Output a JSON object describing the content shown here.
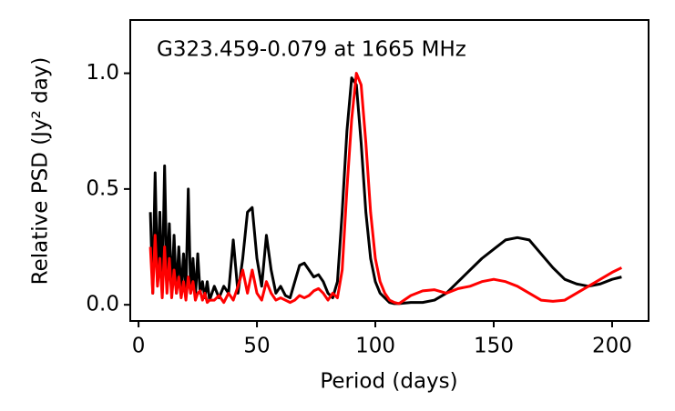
{
  "chart_data": {
    "type": "line",
    "annotation": "G323.459-0.079 at 1665 MHz",
    "x_label": "Period (days)",
    "y_label": "Relative PSD (Jy² day)",
    "x": [
      5,
      6,
      7,
      8,
      9,
      10,
      11,
      12,
      13,
      14,
      15,
      16,
      17,
      18,
      19,
      20,
      21,
      22,
      23,
      24,
      25,
      26,
      27,
      28,
      29,
      30,
      32,
      34,
      36,
      38,
      40,
      42,
      44,
      46,
      48,
      50,
      52,
      54,
      56,
      58,
      60,
      62,
      64,
      66,
      68,
      70,
      72,
      74,
      76,
      78,
      80,
      82,
      84,
      86,
      88,
      90,
      92,
      94,
      96,
      98,
      100,
      102,
      104,
      106,
      108,
      110,
      115,
      120,
      125,
      130,
      135,
      140,
      145,
      150,
      155,
      160,
      165,
      170,
      175,
      180,
      185,
      190,
      195,
      200,
      204
    ],
    "series": [
      {
        "color": "#000000",
        "values": [
          0.4,
          0.05,
          0.57,
          0.1,
          0.4,
          0.05,
          0.6,
          0.1,
          0.35,
          0.05,
          0.3,
          0.05,
          0.25,
          0.05,
          0.22,
          0.05,
          0.5,
          0.05,
          0.2,
          0.03,
          0.22,
          0.05,
          0.1,
          0.03,
          0.1,
          0.02,
          0.08,
          0.03,
          0.08,
          0.05,
          0.28,
          0.05,
          0.2,
          0.4,
          0.42,
          0.2,
          0.08,
          0.3,
          0.15,
          0.05,
          0.08,
          0.04,
          0.03,
          0.1,
          0.17,
          0.18,
          0.15,
          0.12,
          0.13,
          0.1,
          0.05,
          0.03,
          0.1,
          0.4,
          0.75,
          0.98,
          0.95,
          0.7,
          0.4,
          0.2,
          0.1,
          0.05,
          0.03,
          0.01,
          0.005,
          0.005,
          0.01,
          0.01,
          0.02,
          0.05,
          0.1,
          0.15,
          0.2,
          0.24,
          0.28,
          0.29,
          0.28,
          0.22,
          0.16,
          0.11,
          0.09,
          0.08,
          0.09,
          0.11,
          0.12
        ]
      },
      {
        "color": "#ff0000",
        "values": [
          0.25,
          0.05,
          0.3,
          0.08,
          0.2,
          0.03,
          0.25,
          0.05,
          0.2,
          0.03,
          0.15,
          0.05,
          0.12,
          0.03,
          0.1,
          0.02,
          0.12,
          0.05,
          0.1,
          0.02,
          0.05,
          0.06,
          0.02,
          0.05,
          0.01,
          0.02,
          0.02,
          0.04,
          0.01,
          0.05,
          0.02,
          0.08,
          0.15,
          0.05,
          0.15,
          0.05,
          0.02,
          0.1,
          0.05,
          0.02,
          0.03,
          0.02,
          0.01,
          0.02,
          0.04,
          0.03,
          0.04,
          0.06,
          0.07,
          0.05,
          0.02,
          0.05,
          0.03,
          0.15,
          0.5,
          0.8,
          1.0,
          0.95,
          0.7,
          0.4,
          0.2,
          0.1,
          0.05,
          0.02,
          0.01,
          0.005,
          0.04,
          0.06,
          0.065,
          0.05,
          0.07,
          0.08,
          0.1,
          0.11,
          0.1,
          0.08,
          0.05,
          0.02,
          0.015,
          0.02,
          0.05,
          0.08,
          0.11,
          0.14,
          0.16
        ]
      }
    ],
    "xlim": [
      -3.5,
      215.4
    ],
    "ylim": [
      -0.07,
      1.23
    ],
    "xticks": [
      0,
      50,
      100,
      150,
      200
    ],
    "yticks": [
      {
        "value": 0,
        "label": "0.0"
      },
      {
        "value": 0.5,
        "label": "0.5"
      },
      {
        "value": 1,
        "label": "1.0"
      }
    ]
  }
}
